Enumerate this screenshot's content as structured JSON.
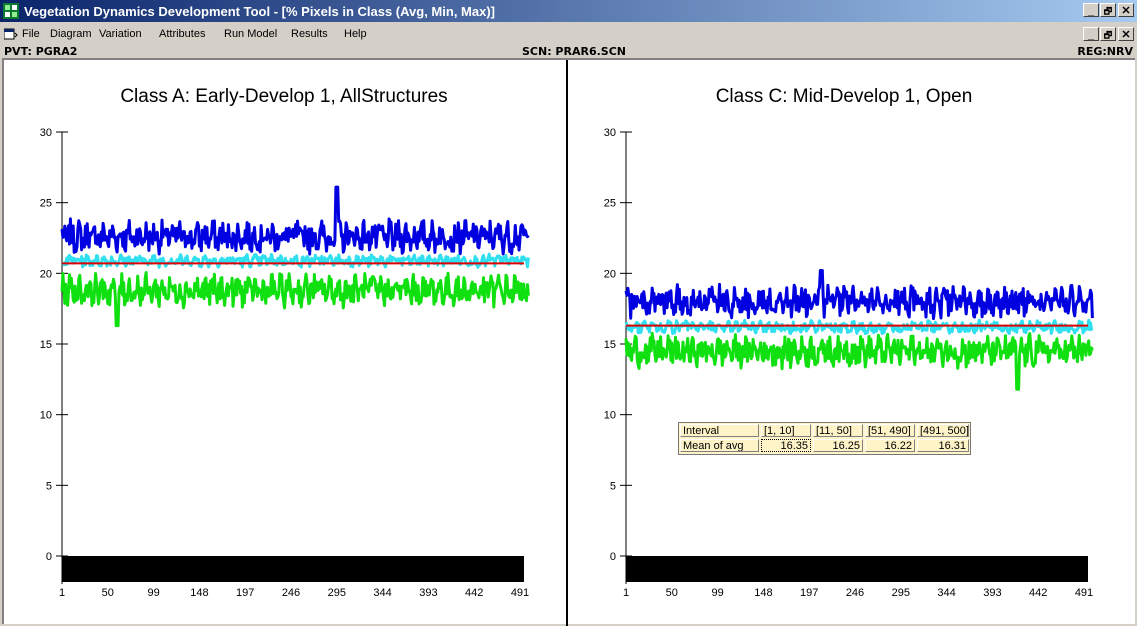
{
  "window": {
    "title": "Vegetation Dynamics Development Tool - [% Pixels in Class (Avg, Min, Max)]",
    "app_icon": "app-grid-icon",
    "controls": {
      "minimize": "_",
      "restore": "🗗",
      "close": "✕"
    }
  },
  "menubar": {
    "items": [
      "File",
      "Diagram",
      "Variation",
      "Attributes",
      "Run Model",
      "Results",
      "Help"
    ]
  },
  "status": {
    "pvt": "PVT: PGRA2",
    "scn": "SCN: PRAR6.SCN",
    "reg": "REG:NRV"
  },
  "colors": {
    "max_series": "#0000e0",
    "avg_upper": "#30e0f0",
    "min_series": "#10e010",
    "mean_line": "#e00000",
    "baseline_bar": "#000000"
  },
  "chart_data": [
    {
      "type": "line",
      "title": "Class A: Early-Develop 1, AllStructures",
      "xlabel": "",
      "ylabel": "",
      "ylim": [
        0,
        30
      ],
      "xlim": [
        1,
        491
      ],
      "x_ticks": [
        "1",
        "50",
        "99",
        "148",
        "197",
        "246",
        "295",
        "344",
        "393",
        "442",
        "491"
      ],
      "y_ticks": [
        "0",
        "5",
        "10",
        "15",
        "20",
        "25",
        "30"
      ],
      "series": [
        {
          "color_key": "max_series",
          "mean": 22.6,
          "amplitude": 0.9,
          "peak_at": 295,
          "peak_value": 26.1
        },
        {
          "color_key": "avg_upper",
          "mean": 20.9,
          "amplitude": 0.35
        },
        {
          "color_key": "min_series",
          "mean": 18.8,
          "amplitude": 0.9,
          "dip_at": 60,
          "dip_value": 16.3
        },
        {
          "color_key": "mean_line",
          "constant": 20.7
        }
      ]
    },
    {
      "type": "line",
      "title": "Class C: Mid-Develop 1, Open",
      "xlabel": "",
      "ylabel": "",
      "ylim": [
        0,
        30
      ],
      "xlim": [
        1,
        491
      ],
      "x_ticks": [
        "1",
        "50",
        "99",
        "148",
        "197",
        "246",
        "295",
        "344",
        "393",
        "442",
        "491"
      ],
      "y_ticks": [
        "0",
        "5",
        "10",
        "15",
        "20",
        "25",
        "30"
      ],
      "series": [
        {
          "color_key": "max_series",
          "mean": 18.0,
          "amplitude": 0.9,
          "peak_at": 210,
          "peak_value": 20.2
        },
        {
          "color_key": "avg_upper",
          "mean": 16.2,
          "amplitude": 0.35
        },
        {
          "color_key": "min_series",
          "mean": 14.5,
          "amplitude": 0.9,
          "dip_at": 420,
          "dip_value": 11.8
        },
        {
          "color_key": "mean_line",
          "constant": 16.3
        }
      ]
    }
  ],
  "interval_table": {
    "headers": [
      "Interval",
      "[1, 10]",
      "[11, 50]",
      "[51, 490]",
      "[491, 500]"
    ],
    "row_label": "Mean of avg",
    "values": [
      "16.35",
      "16.25",
      "16.22",
      "16.31"
    ]
  }
}
